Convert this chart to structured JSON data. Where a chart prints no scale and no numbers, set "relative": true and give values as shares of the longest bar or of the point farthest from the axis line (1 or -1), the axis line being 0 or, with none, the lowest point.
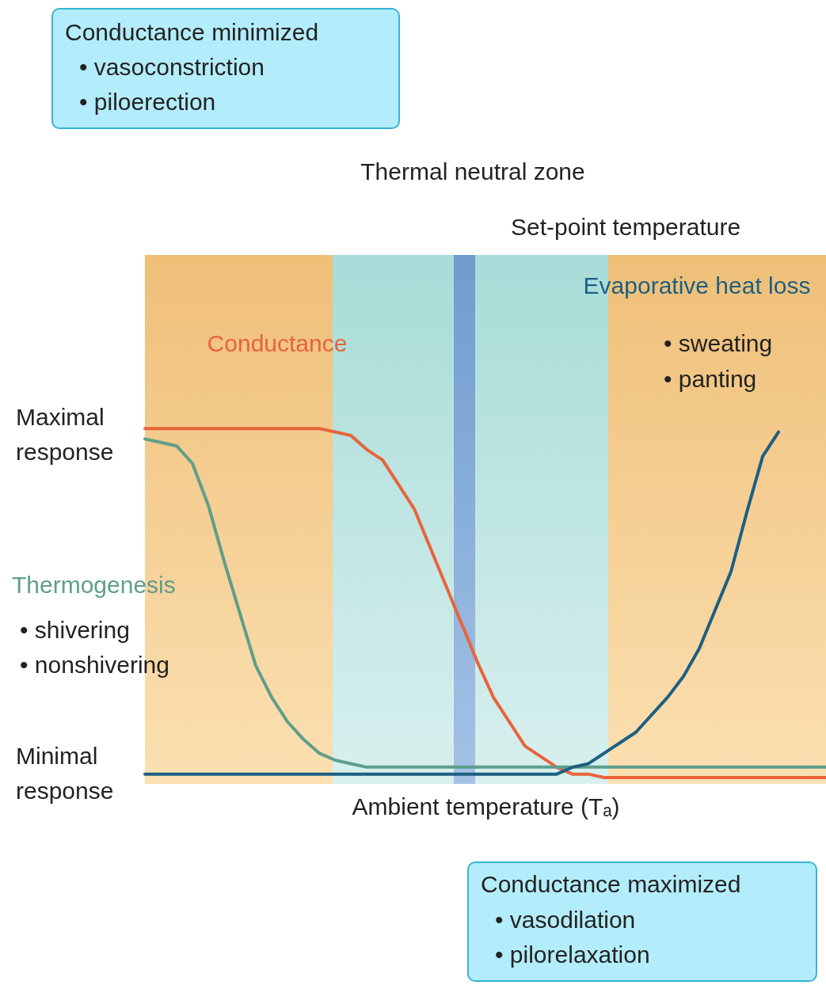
{
  "chart_data": {
    "type": "line",
    "relative": true,
    "xlabel": "Ambient temperature (Tₐ)",
    "tick_labels": false,
    "grid": false,
    "marker": "none",
    "line_style": "solid",
    "categories": [
      null,
      null,
      null,
      null,
      null,
      null,
      null,
      null,
      null,
      null,
      null,
      null,
      null,
      null,
      null,
      null,
      null,
      null,
      null,
      null,
      null,
      null,
      null,
      null,
      null,
      null,
      null,
      null,
      null,
      null,
      null,
      null,
      null,
      null,
      null,
      null,
      null,
      null,
      null,
      null,
      null,
      null,
      null,
      null
    ],
    "series": [
      {
        "name": "Conductance",
        "color": "#e8643c",
        "values": [
          1,
          1,
          1,
          1,
          1,
          1,
          1,
          1,
          1,
          1,
          1,
          1,
          0.99,
          0.98,
          0.94,
          0.91,
          0.84,
          0.77,
          0.66,
          0.55,
          0.44,
          0.33,
          0.23,
          0.16,
          0.09,
          0.06,
          0.03,
          0.01,
          0.01,
          0,
          0,
          0,
          0,
          0,
          0,
          0,
          0,
          0,
          0,
          0,
          0,
          0,
          0,
          0
        ]
      },
      {
        "name": "Thermogenesis",
        "color": "#5f9e8a",
        "values": [
          0.97,
          0.96,
          0.95,
          0.9,
          0.78,
          0.62,
          0.47,
          0.32,
          0.23,
          0.16,
          0.11,
          0.07,
          0.05,
          0.04,
          0.03,
          0.03,
          0.03,
          0.03,
          0.03,
          0.03,
          0.03,
          0.03,
          0.03,
          0.03,
          0.03,
          0.03,
          0.03,
          0.03,
          0.03,
          0.03,
          0.03,
          0.03,
          0.03,
          0.03,
          0.03,
          0.03,
          0.03,
          0.03,
          0.03,
          0.03,
          0.03,
          0.03,
          0.03,
          0.03
        ]
      },
      {
        "name": "Evaporative heat loss",
        "color": "#1d5f82",
        "values": [
          0.01,
          0.01,
          0.01,
          0.01,
          0.01,
          0.01,
          0.01,
          0.01,
          0.01,
          0.01,
          0.01,
          0.01,
          0.01,
          0.01,
          0.01,
          0.01,
          0.01,
          0.01,
          0.01,
          0.01,
          0.01,
          0.01,
          0.01,
          0.01,
          0.01,
          0.01,
          0.01,
          0.03,
          0.04,
          0.07,
          0.1,
          0.13,
          0.18,
          0.23,
          0.29,
          0.37,
          0.48,
          0.59,
          0.76,
          0.92,
          0.99,
          null,
          null,
          null
        ]
      }
    ],
    "annotations": [
      "Conductance minimized",
      "• vasoconstriction",
      "• piloerection",
      "• shivering",
      "• nonshivering",
      "• sweating",
      "• panting",
      "Conductance maximized",
      "• vasodilation",
      "• pilorelaxation",
      "Thermal neutral zone",
      "Set-point temperature",
      "Maximal response",
      "Minimal response"
    ]
  }
}
